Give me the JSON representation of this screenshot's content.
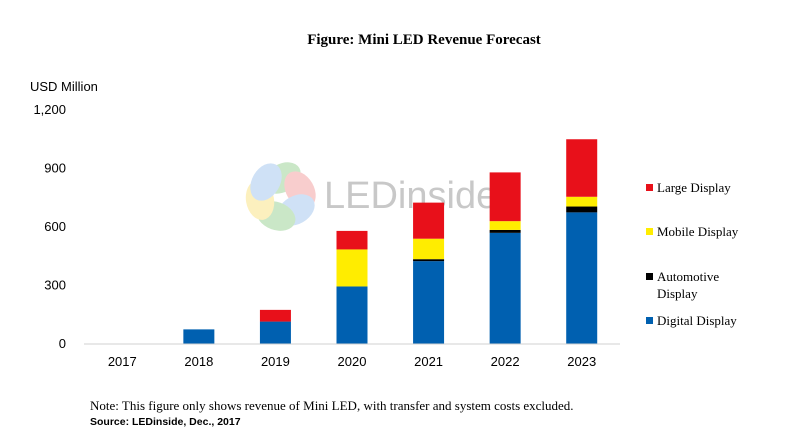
{
  "title": "Figure: Mini LED Revenue Forecast",
  "note": "Note: This figure only shows revenue of Mini LED, with transfer and system costs excluded.",
  "source": "Source: LEDinside, Dec., 2017",
  "watermark": "LEDinside",
  "chart_data": {
    "type": "bar",
    "stacked": true,
    "ylabel": "USD Million",
    "ylim": [
      0,
      1200
    ],
    "yticks": [
      0,
      300,
      600,
      900,
      1200
    ],
    "ytick_labels": [
      "0",
      "300",
      "600",
      "900",
      "1,200"
    ],
    "categories": [
      "2017",
      "2018",
      "2019",
      "2020",
      "2021",
      "2022",
      "2023"
    ],
    "legend_position": "right",
    "grid": false,
    "series": [
      {
        "name": "Digital Display",
        "color": "#0060b0",
        "values": [
          0,
          75,
          115,
          295,
          425,
          570,
          675
        ]
      },
      {
        "name": "Automotive Display",
        "color": "#000000",
        "values": [
          0,
          0,
          0,
          0,
          10,
          15,
          30
        ]
      },
      {
        "name": "Mobile Display",
        "color": "#ffed00",
        "values": [
          0,
          0,
          0,
          190,
          105,
          45,
          50
        ]
      },
      {
        "name": "Large Display",
        "color": "#e8101a",
        "values": [
          0,
          0,
          60,
          95,
          185,
          250,
          295
        ]
      }
    ],
    "legend_order": [
      "Large Display",
      "Mobile Display",
      "Automotive Display",
      "Digital Display"
    ]
  }
}
